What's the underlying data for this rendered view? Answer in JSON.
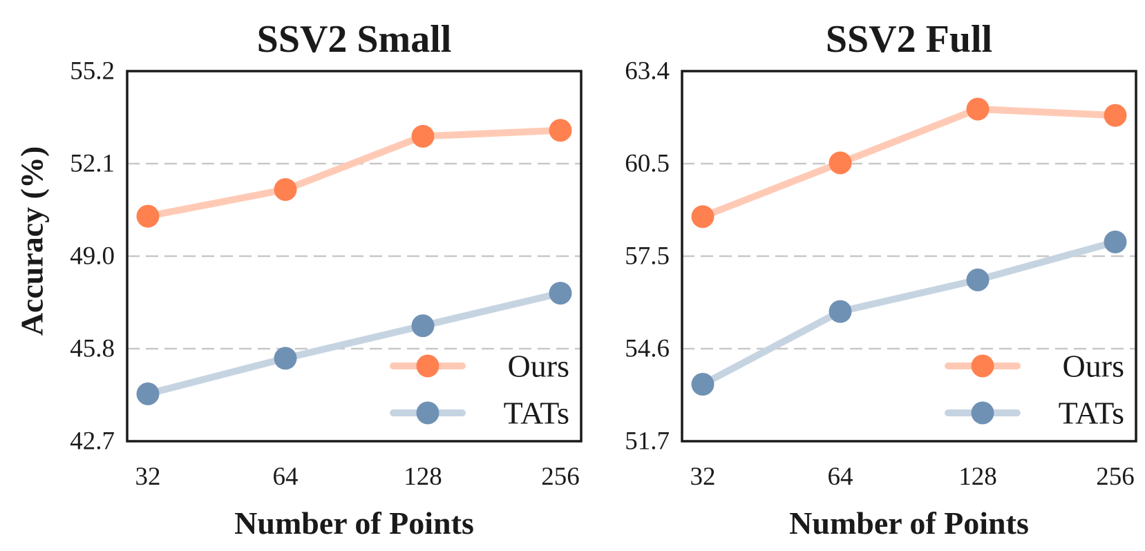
{
  "figure": {
    "ylabel": "Accuracy (%)"
  },
  "chart_data": [
    {
      "type": "line",
      "title": "SSV2 Small",
      "xlabel": "Number of Points",
      "ylabel": "Accuracy (%)",
      "x": [
        32,
        64,
        128,
        256
      ],
      "x_ticks": [
        "32",
        "64",
        "128",
        "256"
      ],
      "y_ticks": [
        "42.7",
        "45.8",
        "49.0",
        "52.1",
        "55.2"
      ],
      "ylim": [
        42.7,
        55.2
      ],
      "grid": "horizontal dashed",
      "legend": "bottom-right",
      "series": [
        {
          "name": "Ours",
          "values": [
            50.3,
            51.2,
            53.0,
            53.2
          ],
          "color": "#ff8150",
          "line_color": "#ffcab5"
        },
        {
          "name": "TATs",
          "values": [
            44.3,
            45.5,
            46.6,
            47.7
          ],
          "color": "#6f91b4",
          "line_color": "#c6d4e2"
        }
      ]
    },
    {
      "type": "line",
      "title": "SSV2 Full",
      "xlabel": "Number of Points",
      "ylabel": "",
      "x": [
        32,
        64,
        128,
        256
      ],
      "x_ticks": [
        "32",
        "64",
        "128",
        "256"
      ],
      "y_ticks": [
        "51.7",
        "54.6",
        "57.5",
        "60.5",
        "63.4"
      ],
      "ylim": [
        51.7,
        63.4
      ],
      "grid": "horizontal dashed",
      "legend": "bottom-right",
      "series": [
        {
          "name": "Ours",
          "values": [
            58.8,
            60.5,
            62.2,
            62.0
          ],
          "color": "#ff8150",
          "line_color": "#ffcab5"
        },
        {
          "name": "TATs",
          "values": [
            53.5,
            55.8,
            56.8,
            58.0
          ],
          "color": "#6f91b4",
          "line_color": "#c6d4e2"
        }
      ]
    }
  ]
}
